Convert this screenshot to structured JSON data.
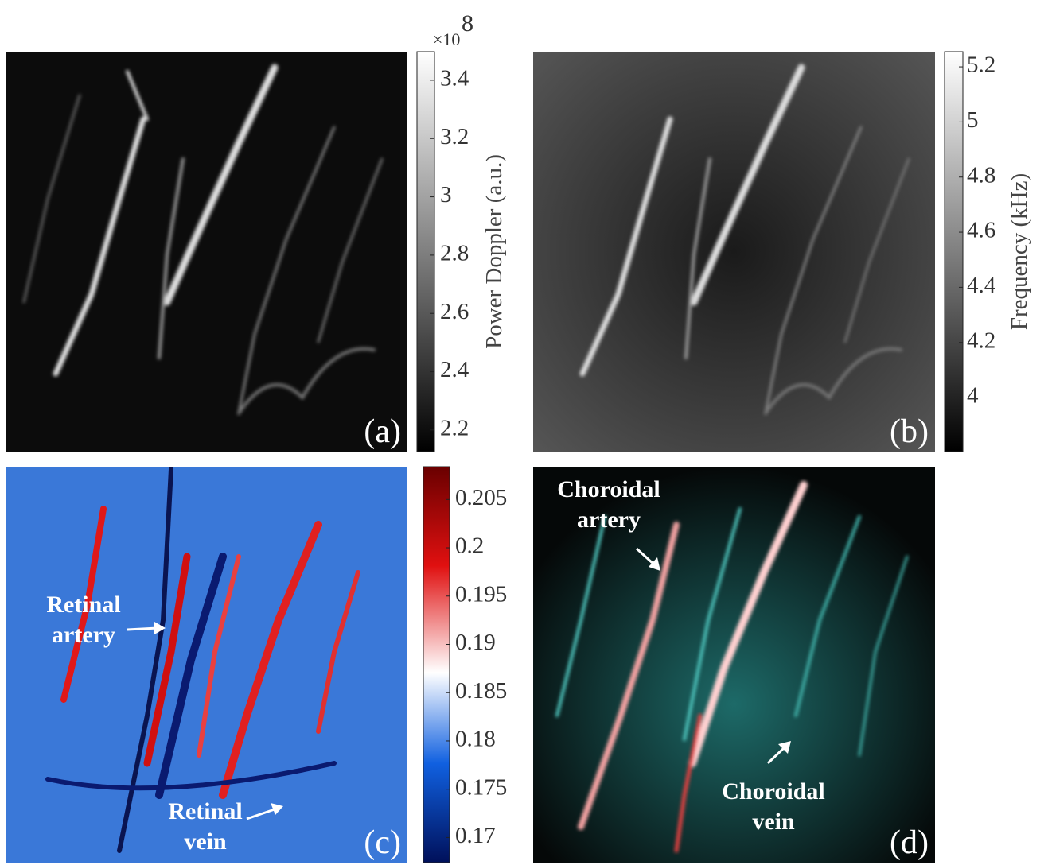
{
  "panels": [
    {
      "label": "(a)",
      "colorbar": {
        "label": "Power Doppler (a.u.)",
        "scale_base": "×10",
        "scale_exponent": "8",
        "clim": [
          2.126,
          3.498
        ],
        "ticks": [
          2.2,
          2.4,
          2.6,
          2.8,
          3,
          3.2,
          3.4
        ]
      }
    },
    {
      "label": "(b)",
      "colorbar": {
        "label": "Frequency (kHz)",
        "clim": [
          3.804,
          5.255
        ],
        "ticks": [
          4,
          4.2,
          4.4,
          4.6,
          4.8,
          5,
          5.2
        ]
      }
    },
    {
      "label": "(c)",
      "colorbar": {
        "clim": [
          0.1674,
          0.2084
        ],
        "ticks": [
          0.17,
          0.175,
          0.18,
          0.185,
          0.19,
          0.195,
          0.2,
          0.205
        ]
      },
      "annotations": [
        {
          "lines": [
            "Retinal",
            "artery"
          ]
        },
        {
          "lines": [
            "Retinal",
            "vein"
          ]
        }
      ]
    },
    {
      "label": "(d)",
      "annotations": [
        {
          "lines": [
            "Choroidal",
            "artery"
          ]
        },
        {
          "lines": [
            "Choroidal",
            "vein"
          ]
        }
      ]
    }
  ]
}
